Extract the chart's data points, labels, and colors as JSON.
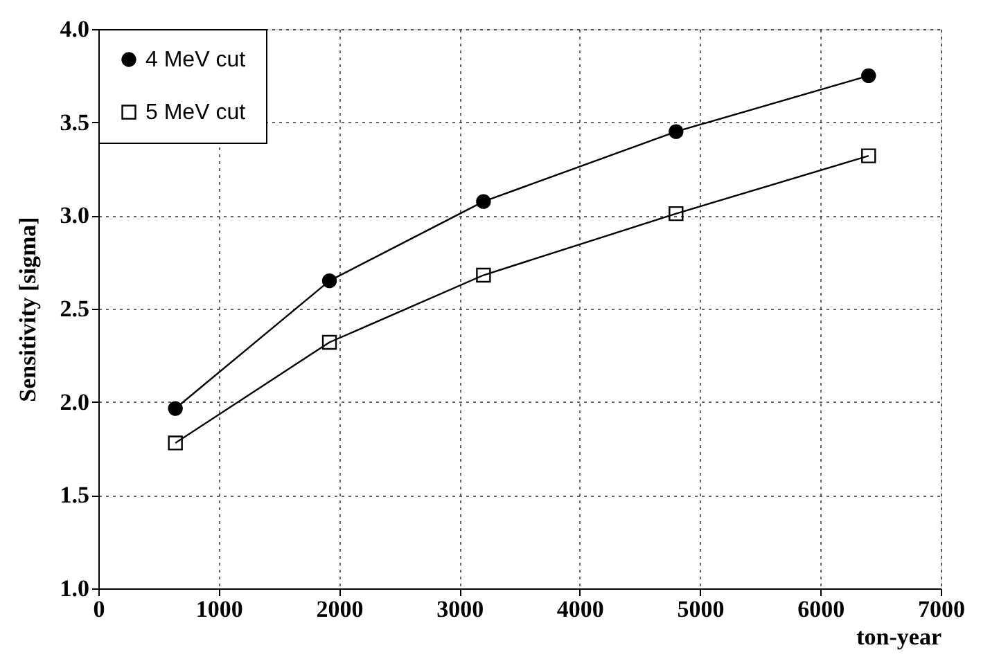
{
  "chart_data": {
    "type": "line",
    "xlabel": "ton-year",
    "ylabel": "Sensitivity [sigma]",
    "x": [
      640,
      1920,
      3200,
      4800,
      6400
    ],
    "series": [
      {
        "name": "4 MeV cut",
        "color": "#000000",
        "marker": "circle",
        "values": [
          1.965,
          2.65,
          3.075,
          3.45,
          3.75
        ]
      },
      {
        "name": "5 MeV cut",
        "color": "#000000",
        "marker": "square",
        "values": [
          1.78,
          2.32,
          2.68,
          3.01,
          3.32
        ]
      }
    ],
    "xlim": [
      0,
      7000
    ],
    "xticks": [
      0,
      1000,
      2000,
      3000,
      4000,
      5000,
      6000,
      7000
    ],
    "ylim": [
      1.0,
      4.0
    ],
    "yticks": [
      {
        "value": 1.0,
        "label": "1.0"
      },
      {
        "value": 1.5,
        "label": "1.5"
      },
      {
        "value": 2.0,
        "label": "2.0"
      },
      {
        "value": 2.5,
        "label": "2.5"
      },
      {
        "value": 3.0,
        "label": "3.0"
      },
      {
        "value": 3.5,
        "label": "3.5"
      },
      {
        "value": 4.0,
        "label": "4.0"
      }
    ],
    "grid": true,
    "legend": "top left",
    "line_style": "solid"
  }
}
